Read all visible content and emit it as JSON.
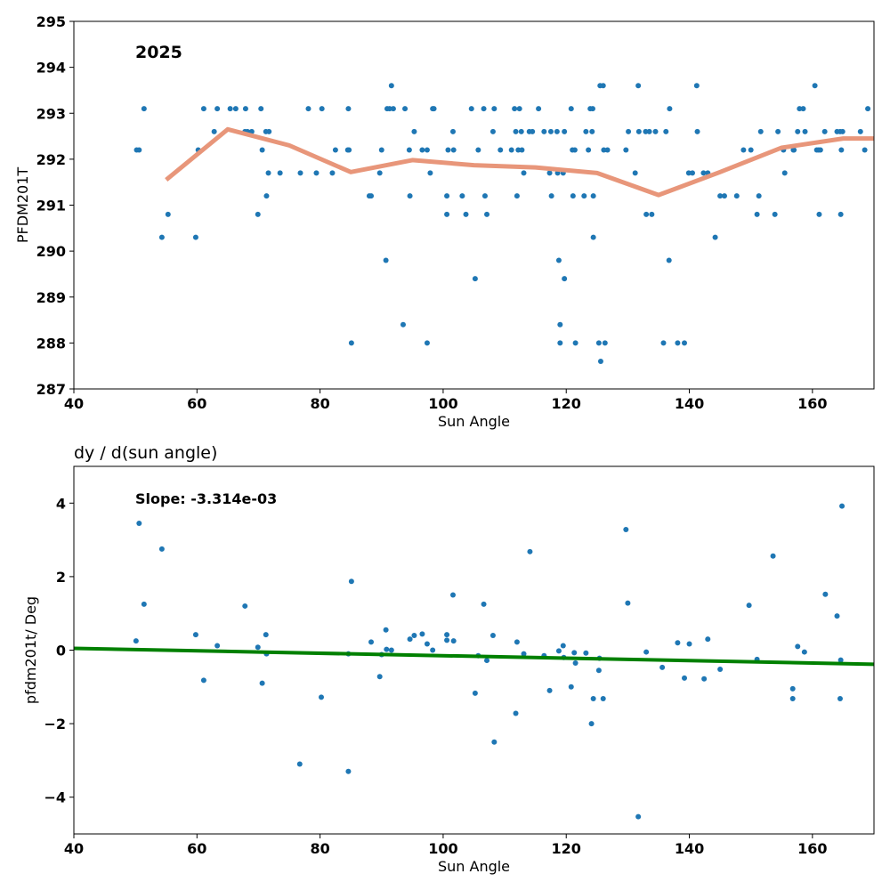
{
  "colors": {
    "points": "#1f77b4",
    "trend": "#e8967a",
    "fit": "#008000",
    "axis": "#000000"
  },
  "chart_data": [
    {
      "type": "scatter",
      "title": "",
      "annotation": "2025",
      "xlabel": "Sun Angle",
      "ylabel": "PFDM201T",
      "xlim": [
        40,
        170
      ],
      "ylim": [
        287,
        295
      ],
      "xticks": [
        40,
        60,
        80,
        100,
        120,
        140,
        160
      ],
      "yticks": [
        287,
        288,
        289,
        290,
        291,
        292,
        293,
        294,
        295
      ],
      "grid": false,
      "points": [
        [
          50.2,
          292.2
        ],
        [
          50.6,
          292.2
        ],
        [
          51.4,
          293.1
        ],
        [
          54.3,
          290.3
        ],
        [
          55.3,
          290.8
        ],
        [
          59.8,
          290.3
        ],
        [
          60.2,
          292.2
        ],
        [
          61.1,
          293.1
        ],
        [
          62.8,
          292.6
        ],
        [
          63.3,
          293.1
        ],
        [
          65.4,
          293.1
        ],
        [
          66.3,
          293.1
        ],
        [
          67.8,
          292.6
        ],
        [
          67.9,
          293.1
        ],
        [
          68.2,
          292.6
        ],
        [
          68.9,
          292.6
        ],
        [
          69.9,
          290.8
        ],
        [
          70.4,
          293.1
        ],
        [
          70.6,
          292.2
        ],
        [
          71.2,
          292.6
        ],
        [
          71.3,
          291.2
        ],
        [
          71.7,
          292.6
        ],
        [
          71.6,
          291.7
        ],
        [
          73.5,
          291.7
        ],
        [
          76.8,
          291.7
        ],
        [
          78.1,
          293.1
        ],
        [
          79.4,
          291.7
        ],
        [
          80.3,
          293.1
        ],
        [
          82.0,
          291.7
        ],
        [
          82.5,
          292.2
        ],
        [
          84.6,
          293.1
        ],
        [
          84.5,
          292.2
        ],
        [
          84.7,
          292.2
        ],
        [
          85.1,
          288.0
        ],
        [
          88.0,
          291.2
        ],
        [
          88.3,
          291.2
        ],
        [
          89.7,
          291.7
        ],
        [
          90.0,
          292.2
        ],
        [
          90.7,
          289.8
        ],
        [
          90.9,
          293.1
        ],
        [
          91.3,
          293.1
        ],
        [
          91.6,
          293.6
        ],
        [
          91.9,
          293.1
        ],
        [
          93.5,
          288.4
        ],
        [
          93.8,
          293.1
        ],
        [
          94.5,
          292.2
        ],
        [
          94.6,
          291.2
        ],
        [
          95.3,
          292.6
        ],
        [
          96.6,
          292.2
        ],
        [
          97.4,
          288.0
        ],
        [
          97.4,
          292.2
        ],
        [
          97.9,
          291.7
        ],
        [
          98.3,
          293.1
        ],
        [
          98.5,
          293.1
        ],
        [
          100.6,
          291.2
        ],
        [
          100.6,
          290.8
        ],
        [
          100.8,
          292.2
        ],
        [
          101.7,
          292.2
        ],
        [
          101.6,
          292.6
        ],
        [
          103.1,
          291.2
        ],
        [
          103.7,
          290.8
        ],
        [
          104.6,
          293.1
        ],
        [
          105.2,
          289.4
        ],
        [
          105.7,
          292.2
        ],
        [
          106.6,
          293.1
        ],
        [
          106.8,
          291.2
        ],
        [
          107.1,
          290.8
        ],
        [
          108.1,
          292.6
        ],
        [
          108.3,
          293.1
        ],
        [
          109.3,
          292.2
        ],
        [
          111.1,
          292.2
        ],
        [
          111.6,
          293.1
        ],
        [
          111.8,
          292.6
        ],
        [
          112.0,
          291.2
        ],
        [
          112.2,
          292.2
        ],
        [
          112.4,
          293.1
        ],
        [
          112.7,
          292.6
        ],
        [
          112.8,
          292.2
        ],
        [
          113.1,
          291.7
        ],
        [
          114.0,
          292.6
        ],
        [
          114.5,
          292.6
        ],
        [
          115.5,
          293.1
        ],
        [
          116.4,
          292.6
        ],
        [
          117.3,
          291.7
        ],
        [
          117.5,
          292.6
        ],
        [
          117.6,
          291.2
        ],
        [
          118.5,
          292.6
        ],
        [
          118.6,
          291.7
        ],
        [
          118.8,
          289.8
        ],
        [
          119.0,
          288.4
        ],
        [
          119.0,
          288.0
        ],
        [
          119.5,
          291.7
        ],
        [
          119.7,
          292.6
        ],
        [
          119.7,
          289.4
        ],
        [
          120.8,
          293.1
        ],
        [
          121.1,
          291.2
        ],
        [
          121.0,
          292.2
        ],
        [
          121.4,
          292.2
        ],
        [
          121.5,
          288.0
        ],
        [
          122.9,
          291.2
        ],
        [
          123.2,
          292.6
        ],
        [
          123.6,
          292.2
        ],
        [
          123.9,
          293.1
        ],
        [
          124.2,
          292.6
        ],
        [
          124.3,
          293.1
        ],
        [
          124.4,
          291.2
        ],
        [
          124.4,
          290.3
        ],
        [
          125.3,
          288.0
        ],
        [
          125.5,
          293.6
        ],
        [
          125.6,
          287.6
        ],
        [
          126.0,
          293.6
        ],
        [
          126.1,
          292.2
        ],
        [
          126.3,
          288.0
        ],
        [
          126.7,
          292.2
        ],
        [
          129.7,
          292.2
        ],
        [
          130.1,
          292.6
        ],
        [
          131.2,
          291.7
        ],
        [
          131.7,
          293.6
        ],
        [
          131.8,
          292.6
        ],
        [
          133.0,
          290.8
        ],
        [
          132.9,
          292.6
        ],
        [
          133.5,
          292.6
        ],
        [
          133.9,
          290.8
        ],
        [
          134.5,
          292.6
        ],
        [
          135.8,
          288.0
        ],
        [
          136.2,
          292.6
        ],
        [
          136.7,
          289.8
        ],
        [
          136.8,
          293.1
        ],
        [
          138.1,
          288.0
        ],
        [
          139.2,
          288.0
        ],
        [
          139.9,
          291.7
        ],
        [
          140.5,
          291.7
        ],
        [
          141.2,
          293.6
        ],
        [
          141.3,
          292.6
        ],
        [
          142.3,
          291.7
        ],
        [
          143.0,
          291.7
        ],
        [
          144.2,
          290.3
        ],
        [
          145.0,
          291.2
        ],
        [
          145.7,
          291.2
        ],
        [
          147.7,
          291.2
        ],
        [
          148.8,
          292.2
        ],
        [
          150.0,
          292.2
        ],
        [
          151.0,
          290.8
        ],
        [
          151.3,
          291.2
        ],
        [
          151.6,
          292.6
        ],
        [
          153.9,
          290.8
        ],
        [
          154.4,
          292.6
        ],
        [
          155.3,
          292.2
        ],
        [
          155.5,
          291.7
        ],
        [
          156.9,
          292.2
        ],
        [
          157.0,
          292.2
        ],
        [
          157.6,
          292.6
        ],
        [
          157.9,
          293.1
        ],
        [
          158.5,
          293.1
        ],
        [
          158.8,
          292.6
        ],
        [
          160.4,
          293.6
        ],
        [
          160.7,
          292.2
        ],
        [
          161.0,
          292.2
        ],
        [
          161.1,
          290.8
        ],
        [
          161.3,
          292.2
        ],
        [
          162.0,
          292.6
        ],
        [
          164.0,
          292.6
        ],
        [
          164.5,
          292.6
        ],
        [
          164.7,
          292.2
        ],
        [
          164.6,
          290.8
        ],
        [
          164.9,
          292.6
        ],
        [
          167.8,
          292.6
        ],
        [
          168.5,
          292.2
        ],
        [
          169.0,
          293.1
        ]
      ],
      "trend": [
        [
          55,
          291.55
        ],
        [
          65,
          292.65
        ],
        [
          75,
          292.3
        ],
        [
          85,
          291.72
        ],
        [
          95,
          291.98
        ],
        [
          105,
          291.87
        ],
        [
          115,
          291.82
        ],
        [
          125,
          291.7
        ],
        [
          135,
          291.22
        ],
        [
          145,
          291.72
        ],
        [
          155,
          292.25
        ],
        [
          165,
          292.45
        ],
        [
          170,
          292.45
        ]
      ]
    },
    {
      "type": "scatter",
      "title": "dy / d(sun angle)",
      "annotation": "Slope: -3.314e-03",
      "xlabel": "Sun Angle",
      "ylabel": "pfdm201t/ Deg",
      "xlim": [
        40,
        170
      ],
      "ylim": [
        -5,
        5
      ],
      "xticks": [
        40,
        60,
        80,
        100,
        120,
        140,
        160
      ],
      "yticks": [
        -4,
        -2,
        0,
        2,
        4
      ],
      "ytick_labels": [
        "−4",
        "−2",
        "0",
        "2",
        "4"
      ],
      "grid": false,
      "points": [
        [
          50.1,
          0.25
        ],
        [
          50.6,
          3.45
        ],
        [
          51.4,
          1.25
        ],
        [
          54.3,
          2.75
        ],
        [
          59.8,
          0.42
        ],
        [
          61.1,
          -0.82
        ],
        [
          63.3,
          0.12
        ],
        [
          67.8,
          1.2
        ],
        [
          69.9,
          0.08
        ],
        [
          70.6,
          -0.9
        ],
        [
          71.2,
          0.42
        ],
        [
          71.3,
          -0.1
        ],
        [
          76.7,
          -3.1
        ],
        [
          80.2,
          -1.28
        ],
        [
          84.6,
          -3.3
        ],
        [
          84.6,
          -0.1
        ],
        [
          85.1,
          1.87
        ],
        [
          88.3,
          0.22
        ],
        [
          89.7,
          -0.72
        ],
        [
          90.0,
          -0.12
        ],
        [
          90.7,
          0.55
        ],
        [
          90.8,
          0.02
        ],
        [
          91.6,
          0.0
        ],
        [
          94.6,
          0.3
        ],
        [
          95.3,
          0.4
        ],
        [
          96.6,
          0.44
        ],
        [
          97.4,
          0.17
        ],
        [
          98.3,
          0.0
        ],
        [
          100.6,
          0.42
        ],
        [
          100.6,
          0.27
        ],
        [
          101.6,
          1.5
        ],
        [
          101.7,
          0.25
        ],
        [
          105.2,
          -1.17
        ],
        [
          105.7,
          -0.15
        ],
        [
          106.6,
          1.25
        ],
        [
          107.1,
          -0.28
        ],
        [
          108.1,
          0.4
        ],
        [
          108.3,
          -2.5
        ],
        [
          111.8,
          -1.72
        ],
        [
          112.0,
          0.22
        ],
        [
          113.1,
          -0.1
        ],
        [
          114.1,
          2.68
        ],
        [
          116.4,
          -0.15
        ],
        [
          117.3,
          -1.1
        ],
        [
          118.8,
          -0.02
        ],
        [
          119.5,
          0.12
        ],
        [
          119.6,
          -0.2
        ],
        [
          120.8,
          -1.0
        ],
        [
          121.3,
          -0.07
        ],
        [
          121.5,
          -0.35
        ],
        [
          123.2,
          -0.08
        ],
        [
          124.1,
          -2.0
        ],
        [
          124.4,
          -1.32
        ],
        [
          125.3,
          -0.55
        ],
        [
          125.4,
          -0.22
        ],
        [
          126.0,
          -1.32
        ],
        [
          129.7,
          3.28
        ],
        [
          130.0,
          1.28
        ],
        [
          131.7,
          -4.53
        ],
        [
          133.0,
          -0.05
        ],
        [
          135.6,
          -0.47
        ],
        [
          138.1,
          0.2
        ],
        [
          139.2,
          -0.76
        ],
        [
          140.0,
          0.17
        ],
        [
          142.4,
          -0.78
        ],
        [
          143.0,
          0.3
        ],
        [
          145.0,
          -0.52
        ],
        [
          149.7,
          1.22
        ],
        [
          151.0,
          -0.25
        ],
        [
          153.6,
          2.56
        ],
        [
          156.8,
          -1.05
        ],
        [
          156.8,
          -1.32
        ],
        [
          157.6,
          0.1
        ],
        [
          158.7,
          -0.05
        ],
        [
          162.1,
          1.52
        ],
        [
          164.0,
          0.93
        ],
        [
          164.6,
          -0.27
        ],
        [
          164.5,
          -1.32
        ],
        [
          164.8,
          3.92
        ]
      ],
      "fit": [
        [
          40,
          0.048
        ],
        [
          170,
          -0.383
        ]
      ]
    }
  ]
}
